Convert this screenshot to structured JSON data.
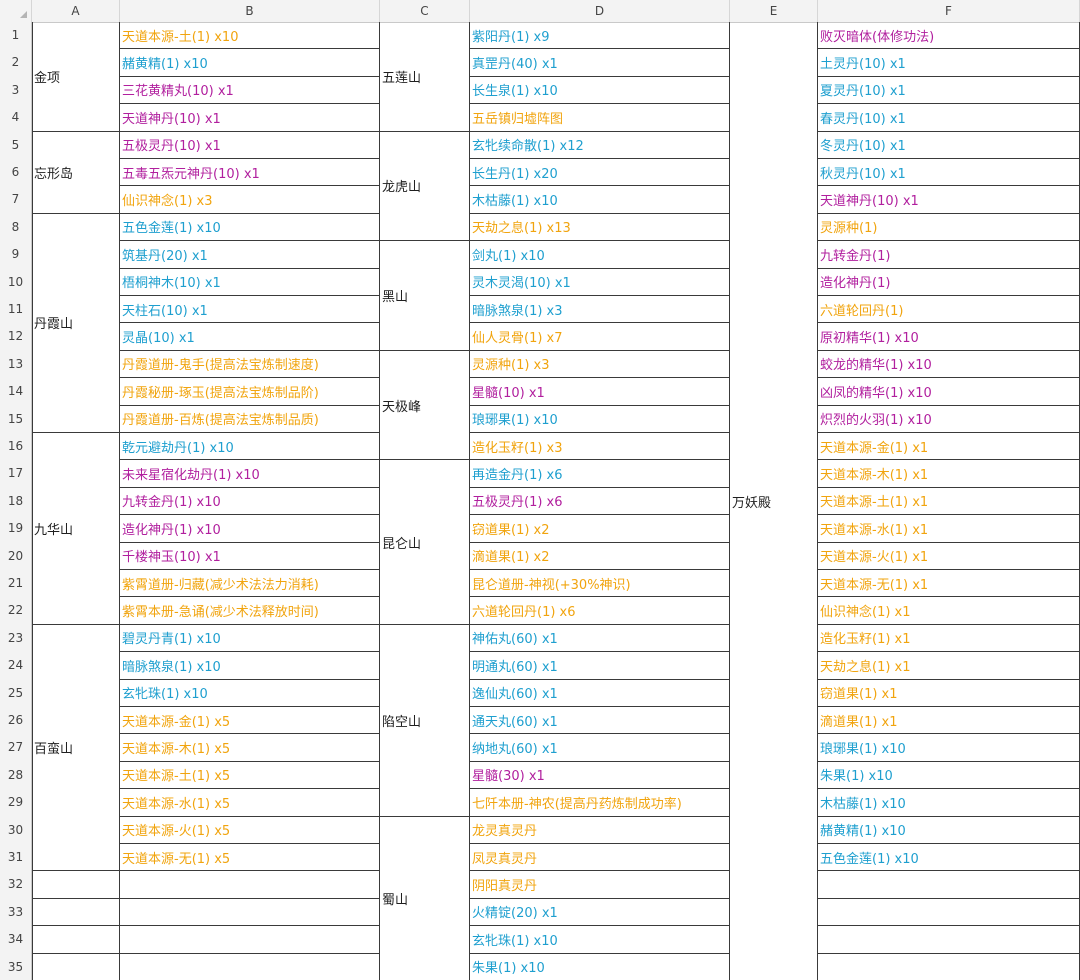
{
  "columns": [
    "A",
    "B",
    "C",
    "D",
    "E",
    "F"
  ],
  "rows": [
    "1",
    "2",
    "3",
    "4",
    "5",
    "6",
    "7",
    "8",
    "9",
    "10",
    "11",
    "12",
    "13",
    "14",
    "15",
    "16",
    "17",
    "18",
    "19",
    "20",
    "21",
    "22",
    "23",
    "24",
    "25",
    "26",
    "27",
    "28",
    "29",
    "30",
    "31",
    "32",
    "33",
    "34",
    "35"
  ],
  "colors": {
    "orange": "#f1a40e",
    "blue": "#1e9fcf",
    "purple": "#b11f9e",
    "black": "#1f1f1f"
  },
  "colA": [
    {
      "label": "金项",
      "rows": [
        1,
        4
      ]
    },
    {
      "label": "忘形岛",
      "rows": [
        5,
        7
      ]
    },
    {
      "label": "丹霞山",
      "rows": [
        8,
        15
      ]
    },
    {
      "label": "九华山",
      "rows": [
        16,
        22
      ]
    },
    {
      "label": "百蛮山",
      "rows": [
        23,
        31
      ]
    }
  ],
  "colB": [
    {
      "text": "天道本源-土(1) x10",
      "color": "orange"
    },
    {
      "text": "赭黄精(1) x10",
      "color": "blue"
    },
    {
      "text": "三花黄精丸(10) x1",
      "color": "purple"
    },
    {
      "text": "天道神丹(10) x1",
      "color": "purple"
    },
    {
      "text": "五极灵丹(10) x1",
      "color": "purple"
    },
    {
      "text": "五毒五炁元神丹(10) x1",
      "color": "purple"
    },
    {
      "text": "仙识神念(1) x3",
      "color": "orange"
    },
    {
      "text": "五色金莲(1) x10",
      "color": "blue"
    },
    {
      "text": "筑基丹(20) x1",
      "color": "blue"
    },
    {
      "text": "梧桐神木(10) x1",
      "color": "blue"
    },
    {
      "text": "天柱石(10) x1",
      "color": "blue"
    },
    {
      "text": "灵晶(10) x1",
      "color": "blue"
    },
    {
      "text": "丹霞道册-鬼手(提高法宝炼制速度)",
      "color": "orange"
    },
    {
      "text": "丹霞秘册-琢玉(提高法宝炼制品阶)",
      "color": "orange"
    },
    {
      "text": "丹霞道册-百炼(提高法宝炼制品质)",
      "color": "orange"
    },
    {
      "text": "乾元避劫丹(1) x10",
      "color": "blue"
    },
    {
      "text": "未来星宿化劫丹(1) x10",
      "color": "purple"
    },
    {
      "text": "九转金丹(1) x10",
      "color": "purple"
    },
    {
      "text": "造化神丹(1) x10",
      "color": "purple"
    },
    {
      "text": "千楼神玉(10) x1",
      "color": "purple"
    },
    {
      "text": "紫霄道册-归藏(减少术法法力消耗)",
      "color": "orange"
    },
    {
      "text": "紫霄本册-急诵(减少术法释放时间)",
      "color": "orange"
    },
    {
      "text": "碧灵丹青(1) x10",
      "color": "blue"
    },
    {
      "text": "暗脉煞泉(1) x10",
      "color": "blue"
    },
    {
      "text": "玄牝珠(1) x10",
      "color": "blue"
    },
    {
      "text": "天道本源-金(1) x5",
      "color": "orange"
    },
    {
      "text": "天道本源-木(1) x5",
      "color": "orange"
    },
    {
      "text": "天道本源-土(1) x5",
      "color": "orange"
    },
    {
      "text": "天道本源-水(1) x5",
      "color": "orange"
    },
    {
      "text": "天道本源-火(1) x5",
      "color": "orange"
    },
    {
      "text": "天道本源-无(1) x5",
      "color": "orange"
    },
    {
      "text": "",
      "color": "black"
    },
    {
      "text": "",
      "color": "black"
    },
    {
      "text": "",
      "color": "black"
    },
    {
      "text": "",
      "color": "black"
    }
  ],
  "colC": [
    {
      "label": "五莲山",
      "rows": [
        1,
        4
      ]
    },
    {
      "label": "龙虎山",
      "rows": [
        5,
        8
      ]
    },
    {
      "label": "黑山",
      "rows": [
        9,
        12
      ]
    },
    {
      "label": "天极峰",
      "rows": [
        13,
        16
      ]
    },
    {
      "label": "昆仑山",
      "rows": [
        17,
        22
      ]
    },
    {
      "label": "陷空山",
      "rows": [
        23,
        29
      ]
    },
    {
      "label": "蜀山",
      "rows": [
        30,
        35
      ]
    }
  ],
  "colD": [
    {
      "text": "紫阳丹(1) x9",
      "color": "blue"
    },
    {
      "text": "真罡丹(40) x1",
      "color": "blue"
    },
    {
      "text": "长生泉(1) x10",
      "color": "blue"
    },
    {
      "text": "五岳镇归墟阵图",
      "color": "orange"
    },
    {
      "text": "玄牝续命散(1) x12",
      "color": "blue"
    },
    {
      "text": "长生丹(1) x20",
      "color": "blue"
    },
    {
      "text": "木枯藤(1) x10",
      "color": "blue"
    },
    {
      "text": "天劫之息(1) x13",
      "color": "orange"
    },
    {
      "text": "剑丸(1) x10",
      "color": "blue"
    },
    {
      "text": "灵木灵渴(10) x1",
      "color": "blue"
    },
    {
      "text": "暗脉煞泉(1) x3",
      "color": "blue"
    },
    {
      "text": "仙人灵骨(1) x7",
      "color": "orange"
    },
    {
      "text": "灵源种(1) x3",
      "color": "orange"
    },
    {
      "text": "星髓(10) x1",
      "color": "purple"
    },
    {
      "text": "琅琊果(1) x10",
      "color": "blue"
    },
    {
      "text": "造化玉籽(1) x3",
      "color": "orange"
    },
    {
      "text": "再造金丹(1) x6",
      "color": "blue"
    },
    {
      "text": "五极灵丹(1) x6",
      "color": "purple"
    },
    {
      "text": "窃道果(1) x2",
      "color": "orange"
    },
    {
      "text": "滴道果(1) x2",
      "color": "orange"
    },
    {
      "text": "昆仑道册-神视(+30%神识)",
      "color": "orange"
    },
    {
      "text": "六道轮回丹(1) x6",
      "color": "orange"
    },
    {
      "text": "神佑丸(60) x1",
      "color": "blue"
    },
    {
      "text": "明通丸(60) x1",
      "color": "blue"
    },
    {
      "text": "逸仙丸(60) x1",
      "color": "blue"
    },
    {
      "text": "通天丸(60) x1",
      "color": "blue"
    },
    {
      "text": "纳地丸(60) x1",
      "color": "blue"
    },
    {
      "text": "星髓(30) x1",
      "color": "purple"
    },
    {
      "text": "七阡本册-神农(提高丹药炼制成功率)",
      "color": "orange"
    },
    {
      "text": "龙灵真灵丹",
      "color": "orange"
    },
    {
      "text": "凤灵真灵丹",
      "color": "orange"
    },
    {
      "text": "阴阳真灵丹",
      "color": "orange"
    },
    {
      "text": "火精锭(20) x1",
      "color": "blue"
    },
    {
      "text": "玄牝珠(1) x10",
      "color": "blue"
    },
    {
      "text": "朱果(1) x10",
      "color": "blue"
    }
  ],
  "colE": [
    {
      "label": "万妖殿",
      "rows": [
        1,
        35
      ]
    }
  ],
  "colF": [
    {
      "text": "败灭暗体(体修功法)",
      "color": "purple"
    },
    {
      "text": "土灵丹(10) x1",
      "color": "blue"
    },
    {
      "text": "夏灵丹(10) x1",
      "color": "blue"
    },
    {
      "text": "春灵丹(10) x1",
      "color": "blue"
    },
    {
      "text": "冬灵丹(10) x1",
      "color": "blue"
    },
    {
      "text": "秋灵丹(10) x1",
      "color": "blue"
    },
    {
      "text": "天道神丹(10) x1",
      "color": "purple"
    },
    {
      "text": "灵源种(1)",
      "color": "orange"
    },
    {
      "text": "九转金丹(1)",
      "color": "purple"
    },
    {
      "text": "造化神丹(1)",
      "color": "purple"
    },
    {
      "text": "六道轮回丹(1)",
      "color": "orange"
    },
    {
      "text": "原初精华(1) x10",
      "color": "purple"
    },
    {
      "text": "蛟龙的精华(1) x10",
      "color": "purple"
    },
    {
      "text": "凶凤的精华(1) x10",
      "color": "purple"
    },
    {
      "text": "炽烈的火羽(1) x10",
      "color": "purple"
    },
    {
      "text": "天道本源-金(1) x1",
      "color": "orange"
    },
    {
      "text": "天道本源-木(1) x1",
      "color": "orange"
    },
    {
      "text": "天道本源-土(1) x1",
      "color": "orange"
    },
    {
      "text": "天道本源-水(1) x1",
      "color": "orange"
    },
    {
      "text": "天道本源-火(1) x1",
      "color": "orange"
    },
    {
      "text": "天道本源-无(1) x1",
      "color": "orange"
    },
    {
      "text": "仙识神念(1) x1",
      "color": "orange"
    },
    {
      "text": "造化玉籽(1) x1",
      "color": "orange"
    },
    {
      "text": "天劫之息(1) x1",
      "color": "orange"
    },
    {
      "text": "窃道果(1) x1",
      "color": "orange"
    },
    {
      "text": "滴道果(1) x1",
      "color": "orange"
    },
    {
      "text": "琅琊果(1) x10",
      "color": "blue"
    },
    {
      "text": "朱果(1) x10",
      "color": "blue"
    },
    {
      "text": "木枯藤(1) x10",
      "color": "blue"
    },
    {
      "text": "赭黄精(1) x10",
      "color": "blue"
    },
    {
      "text": "五色金莲(1) x10",
      "color": "blue"
    },
    {
      "text": "",
      "color": "black"
    },
    {
      "text": "",
      "color": "black"
    },
    {
      "text": "",
      "color": "black"
    },
    {
      "text": "",
      "color": "black"
    }
  ]
}
